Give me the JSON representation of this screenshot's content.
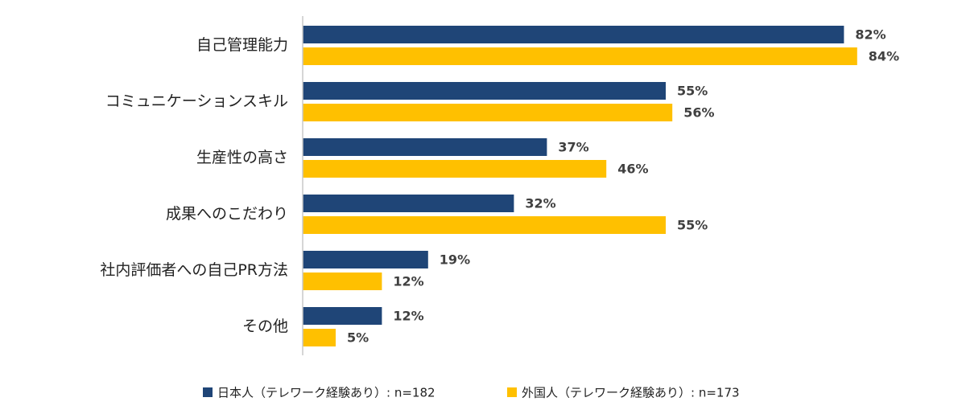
{
  "chart_data": {
    "type": "bar",
    "orientation": "horizontal",
    "categories": [
      "自己管理能力",
      "コミュニケーションスキル",
      "生産性の高さ",
      "成果へのこだわり",
      "社内評価者への自己PR方法",
      "その他"
    ],
    "series": [
      {
        "name": "日本人（テレワーク経験あり）: n=182",
        "color": "#1F4577",
        "values": [
          82,
          55,
          37,
          32,
          19,
          12
        ]
      },
      {
        "name": "外国人（テレワーク経験あり）: n=173",
        "color": "#FFC000",
        "values": [
          84,
          56,
          46,
          55,
          12,
          5
        ]
      }
    ],
    "value_suffix": "%",
    "xlim": [
      0,
      100
    ],
    "grid": false,
    "legend_position": "bottom"
  }
}
